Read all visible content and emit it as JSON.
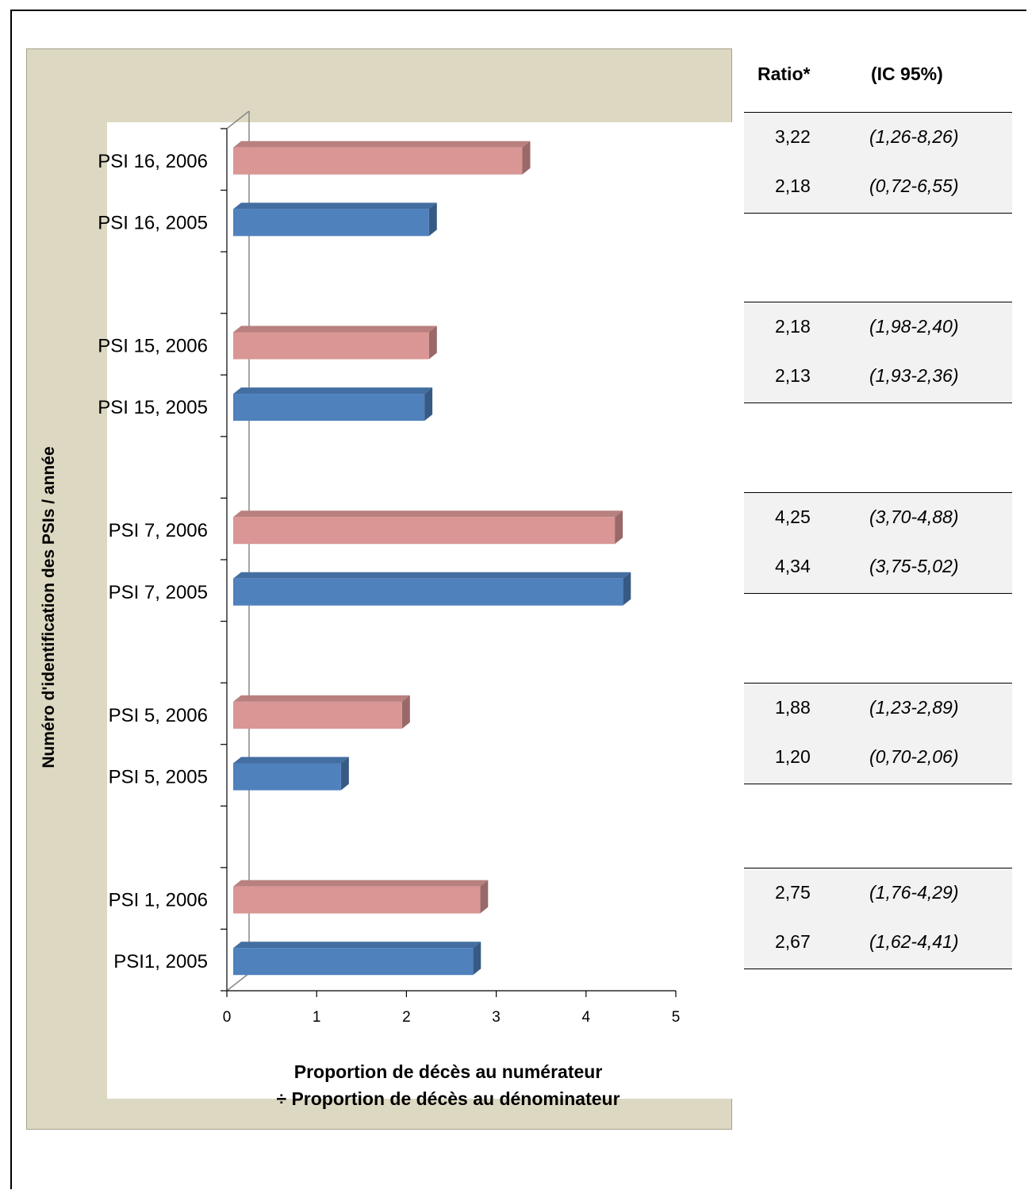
{
  "chart_data": {
    "type": "bar",
    "orientation": "horizontal",
    "ylabel": "Numéro d'identification des PSIs / année",
    "xlabel_lines": [
      "Proportion de décès au numérateur",
      "÷ Proportion de décès au dénominateur"
    ],
    "xlim": [
      0,
      5
    ],
    "xticks": [
      "0",
      "1",
      "2",
      "3",
      "4",
      "5"
    ],
    "grid": false,
    "bars": [
      {
        "label": "PSI 16, 2006",
        "value": 3.22,
        "year": "2006"
      },
      {
        "label": "PSI 16, 2005",
        "value": 2.18,
        "year": "2005"
      },
      {
        "label": "PSI 15, 2006",
        "value": 2.18,
        "year": "2006"
      },
      {
        "label": "PSI 15, 2005",
        "value": 2.13,
        "year": "2005"
      },
      {
        "label": "PSI 7, 2006",
        "value": 4.25,
        "year": "2006"
      },
      {
        "label": "PSI 7, 2005",
        "value": 4.34,
        "year": "2005"
      },
      {
        "label": "PSI 5, 2006",
        "value": 1.88,
        "year": "2006"
      },
      {
        "label": "PSI 5, 2005",
        "value": 1.2,
        "year": "2005"
      },
      {
        "label": "PSI 1, 2006",
        "value": 2.75,
        "year": "2006"
      },
      {
        "label": "PSI1, 2005",
        "value": 2.67,
        "year": "2005"
      }
    ],
    "colors": {
      "2006": "#d99694",
      "2005": "#4f81bd"
    }
  },
  "table": {
    "headers": {
      "ratio": "Ratio*",
      "ci": "(IC 95%)"
    },
    "groups": [
      [
        {
          "ratio": "3,22",
          "ci": "(1,26-8,26)"
        },
        {
          "ratio": "2,18",
          "ci": "(0,72-6,55)"
        }
      ],
      [
        {
          "ratio": "2,18",
          "ci": "(1,98-2,40)"
        },
        {
          "ratio": "2,13",
          "ci": "(1,93-2,36)"
        }
      ],
      [
        {
          "ratio": "4,25",
          "ci": "(3,70-4,88)"
        },
        {
          "ratio": "4,34",
          "ci": "(3,75-5,02)"
        }
      ],
      [
        {
          "ratio": "1,88",
          "ci": "(1,23-2,89)"
        },
        {
          "ratio": "1,20",
          "ci": "(0,70-2,06)"
        }
      ],
      [
        {
          "ratio": "2,75",
          "ci": "(1,76-4,29)"
        },
        {
          "ratio": "2,67",
          "ci": "(1,62-4,41)"
        }
      ]
    ]
  }
}
